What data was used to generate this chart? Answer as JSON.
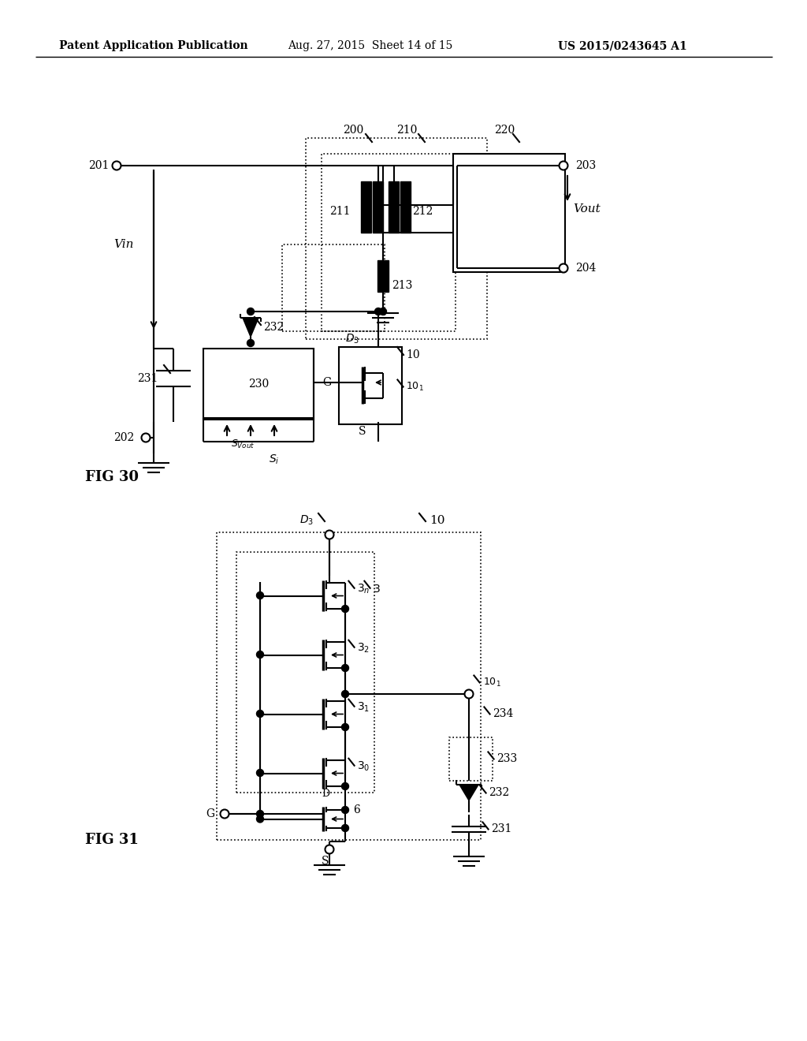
{
  "header_left": "Patent Application Publication",
  "header_mid": "Aug. 27, 2015  Sheet 14 of 15",
  "header_right": "US 2015/0243645 A1",
  "fig30_label": "FIG 30",
  "fig31_label": "FIG 31",
  "bg_color": "#ffffff",
  "line_color": "#000000"
}
